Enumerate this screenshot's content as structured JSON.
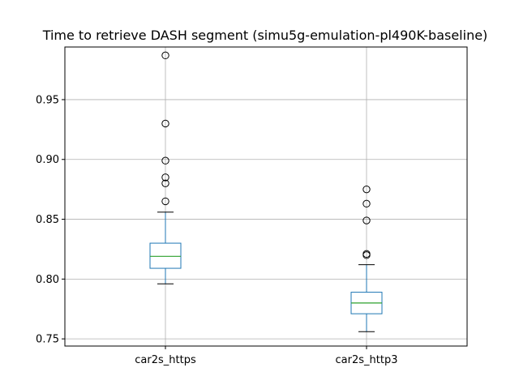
{
  "chart_data": {
    "type": "box",
    "title": "Time to retrieve DASH segment (simu5g-emulation-pl490K-baseline)",
    "xlabel": "",
    "ylabel": "",
    "ylim": [
      0.744,
      0.994
    ],
    "yticks": [
      "0.75",
      "0.80",
      "0.85",
      "0.90",
      "0.95"
    ],
    "grid": true,
    "categories": [
      "car2s_https",
      "car2s_http3"
    ],
    "boxes": [
      {
        "category": "car2s_https",
        "whisker_low": 0.796,
        "q1": 0.809,
        "median": 0.819,
        "q3": 0.83,
        "whisker_high": 0.856,
        "outliers": [
          0.865,
          0.88,
          0.885,
          0.899,
          0.93,
          0.987
        ]
      },
      {
        "category": "car2s_http3",
        "whisker_low": 0.756,
        "q1": 0.771,
        "median": 0.78,
        "q3": 0.789,
        "whisker_high": 0.812,
        "outliers": [
          0.82,
          0.821,
          0.849,
          0.863,
          0.875
        ]
      }
    ],
    "colors": {
      "box": "#1f77b4",
      "median": "#2ca02c",
      "whisker": "#1f77b4",
      "cap": "#000000",
      "outlier": "#000000",
      "grid": "#b0b0b0"
    }
  }
}
